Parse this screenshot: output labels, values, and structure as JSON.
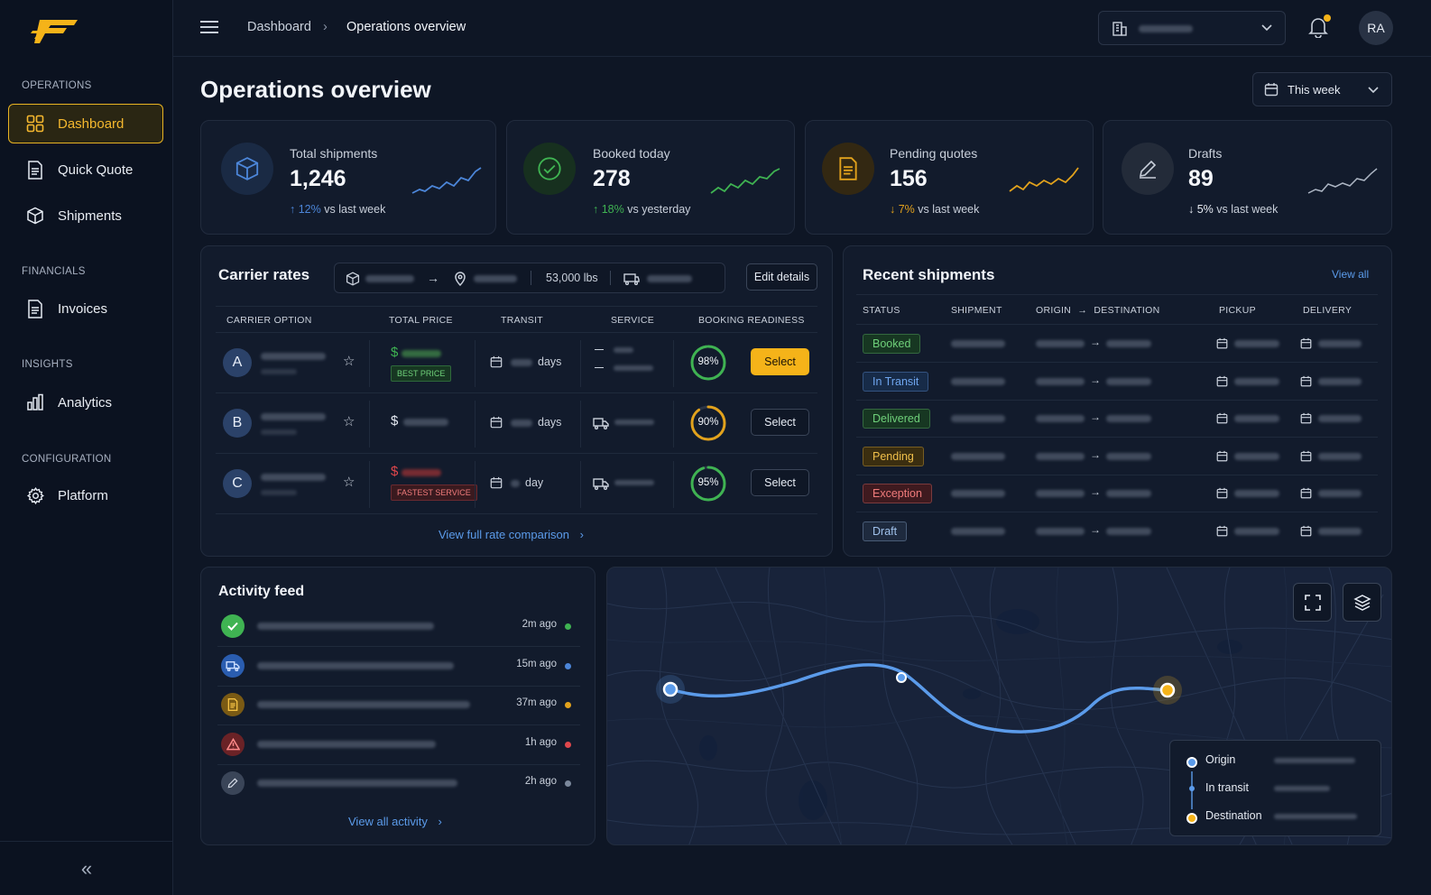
{
  "sidebar": {
    "sections": {
      "operations": "OPERATIONS",
      "financials": "FINANCIALS",
      "insights": "INSIGHTS",
      "configuration": "CONFIGURATION"
    },
    "items": {
      "dashboard": "Dashboard",
      "quick_quote": "Quick Quote",
      "shipments": "Shipments",
      "invoices": "Invoices",
      "analytics": "Analytics",
      "platform": "Platform"
    },
    "collapse_icon": "double-chevron-left"
  },
  "header": {
    "breadcrumb_root": "Dashboard",
    "breadcrumb_current": "Operations overview",
    "avatar_initials": "RA",
    "notification_dot_color": "#f5b319"
  },
  "page": {
    "title": "Operations overview",
    "period": "This week"
  },
  "kpis": [
    {
      "label": "Total shipments",
      "value": "1,246",
      "delta": "12%",
      "delta_text": "vs last week",
      "direction": "up",
      "color": "#4c86d9",
      "icon": "box-icon"
    },
    {
      "label": "Booked today",
      "value": "278",
      "delta": "18%",
      "delta_text": "vs yesterday",
      "direction": "up",
      "color": "#3fb352",
      "icon": "check-circle-icon"
    },
    {
      "label": "Pending quotes",
      "value": "156",
      "delta": "7%",
      "delta_text": "vs last week",
      "direction": "down",
      "color": "#e2a21c",
      "icon": "document-icon"
    },
    {
      "label": "Drafts",
      "value": "89",
      "delta": "5%",
      "delta_text": "vs last week",
      "direction": "down",
      "color": "#c9d0db",
      "icon": "pencil-icon"
    }
  ],
  "carrier_rates": {
    "title": "Carrier rates",
    "weight": "53,000 lbs",
    "edit_label": "Edit details",
    "columns": [
      "CARRIER OPTION",
      "TOTAL PRICE",
      "TRANSIT",
      "SERVICE",
      "BOOKING READINESS"
    ],
    "rows": [
      {
        "letter": "A",
        "price_symbol": "$",
        "price_color": "#3fb352",
        "tag": "BEST PRICE",
        "transit_unit": "days",
        "readiness": "98%",
        "readiness_value": 98,
        "ring_color": "#3fb352",
        "action": "Select",
        "primary": true
      },
      {
        "letter": "B",
        "price_symbol": "$",
        "price_color": "#e6ebf3",
        "tag": "",
        "transit_unit": "days",
        "readiness": "90%",
        "readiness_value": 90,
        "ring_color": "#e2a21c",
        "action": "Select",
        "primary": false
      },
      {
        "letter": "C",
        "price_symbol": "$",
        "price_color": "#e0474c",
        "tag": "FASTEST SERVICE",
        "transit_unit": "day",
        "readiness": "95%",
        "readiness_value": 95,
        "ring_color": "#3fb352",
        "action": "Select",
        "primary": false
      }
    ],
    "footer_link": "View full rate comparison"
  },
  "recent_shipments": {
    "title": "Recent shipments",
    "view_all": "View all",
    "columns": {
      "status": "STATUS",
      "shipment": "SHIPMENT",
      "origin": "ORIGIN",
      "destination": "DESTINATION",
      "pickup": "PICKUP",
      "delivery": "DELIVERY"
    },
    "rows": [
      {
        "status": "Booked",
        "fg": "#6fd07a",
        "bg": "#173722"
      },
      {
        "status": "In Transit",
        "fg": "#6fa6ef",
        "bg": "#172b48"
      },
      {
        "status": "Delivered",
        "fg": "#6fd07a",
        "bg": "#173722"
      },
      {
        "status": "Pending",
        "fg": "#f0bf4a",
        "bg": "#3b2e10"
      },
      {
        "status": "Exception",
        "fg": "#f07b7b",
        "bg": "#3f1a1f"
      },
      {
        "status": "Draft",
        "fg": "#9fc0ea",
        "bg": "#1e2a3e"
      }
    ]
  },
  "activity": {
    "title": "Activity feed",
    "items": [
      {
        "time": "2m ago",
        "icon": "check-icon",
        "icon_bg": "#3fb352",
        "dot": "#3fb352"
      },
      {
        "time": "15m ago",
        "icon": "truck-icon",
        "icon_bg": "#2a5db0",
        "dot": "#4c86d9"
      },
      {
        "time": "37m ago",
        "icon": "document-icon",
        "icon_bg": "#7a5a14",
        "dot": "#e2a21c"
      },
      {
        "time": "1h ago",
        "icon": "warning-icon",
        "icon_bg": "#6a2226",
        "dot": "#e0474c"
      },
      {
        "time": "2h ago",
        "icon": "pencil-icon",
        "icon_bg": "#3a4558",
        "dot": "#7b889c"
      }
    ],
    "footer_link": "View all activity"
  },
  "map": {
    "legend": {
      "origin": "Origin",
      "in_transit": "In transit",
      "destination": "Destination"
    },
    "origin_color": "#5b9bea",
    "destination_color": "#f5b319"
  }
}
